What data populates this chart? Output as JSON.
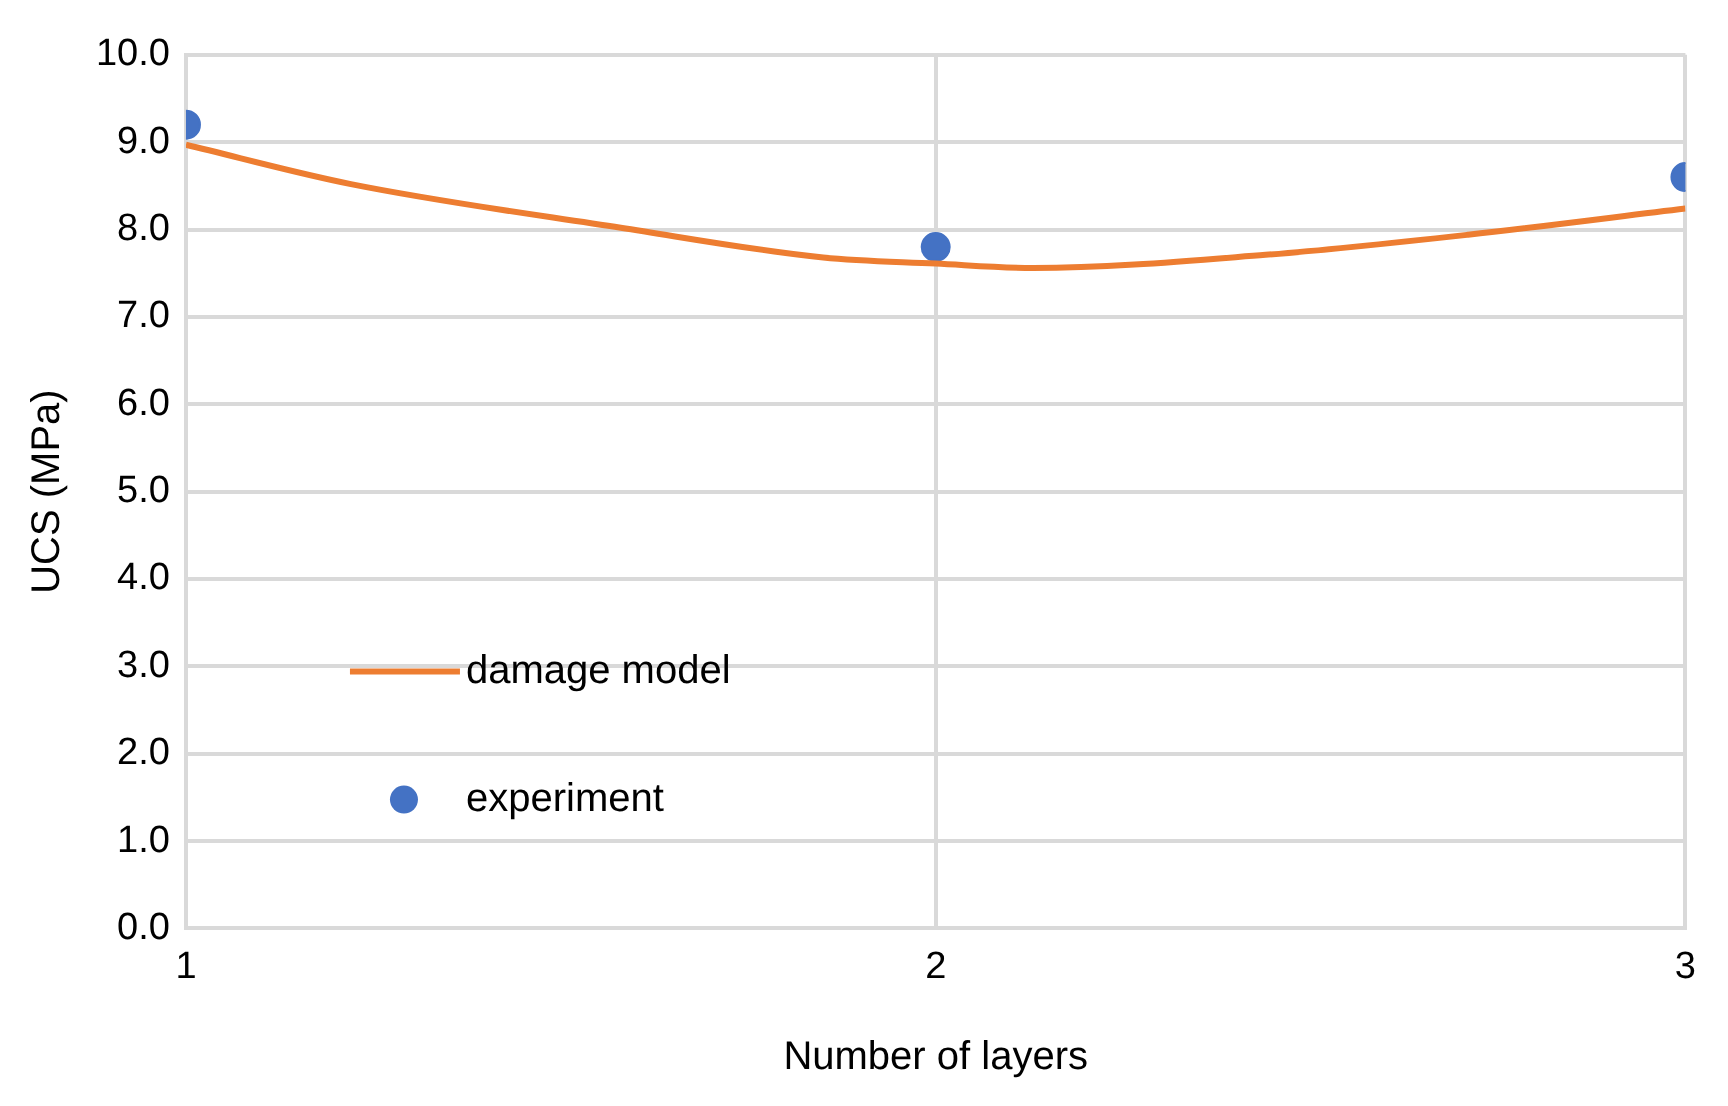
{
  "chart_data": {
    "type": "line",
    "xlabel": "Number of layers",
    "ylabel": "UCS (MPa)",
    "xlim": [
      1,
      3
    ],
    "xticks": [
      1,
      2,
      3
    ],
    "ylim": [
      0,
      10
    ],
    "yticks": [
      {
        "value": 0,
        "label": "0.0"
      },
      {
        "value": 1,
        "label": "1.0"
      },
      {
        "value": 2,
        "label": "2.0"
      },
      {
        "value": 3,
        "label": "3.0"
      },
      {
        "value": 4,
        "label": "4.0"
      },
      {
        "value": 5,
        "label": "5.0"
      },
      {
        "value": 6,
        "label": "6.0"
      },
      {
        "value": 7,
        "label": "7.0"
      },
      {
        "value": 8,
        "label": "8.0"
      },
      {
        "value": 9,
        "label": "9.0"
      },
      {
        "value": 10,
        "label": "10.0"
      }
    ],
    "grid": true,
    "legend": "bottom left",
    "series": [
      {
        "name": "damage model",
        "color": "#ed7d31",
        "marker": "none",
        "line_style": "solid",
        "x": [
          1,
          1.22,
          1.58,
          1.85,
          2,
          2.13,
          2.44,
          2.71,
          3
        ],
        "values": [
          8.97,
          8.52,
          8.02,
          7.68,
          7.61,
          7.56,
          7.71,
          7.94,
          8.24
        ]
      },
      {
        "name": "experiment",
        "type": "scatter",
        "color": "#4472c4",
        "marker": "circle",
        "x": [
          1,
          2,
          3
        ],
        "values": [
          9.2,
          7.8,
          8.6
        ]
      }
    ]
  }
}
